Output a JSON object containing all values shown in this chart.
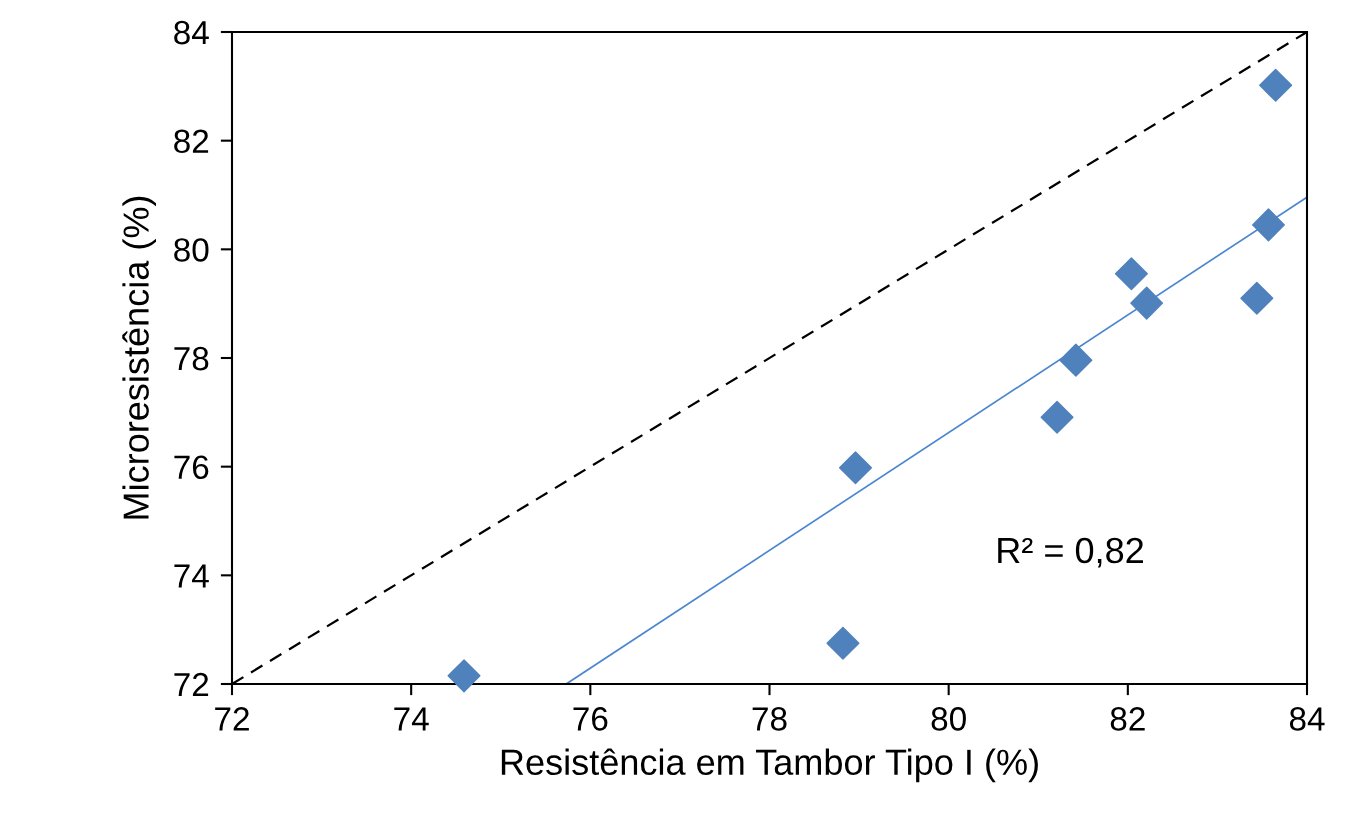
{
  "chart_data": {
    "type": "scatter",
    "xlabel": "Resistência em Tambor Tipo I (%)",
    "ylabel": "Microresistência (%)",
    "annotations": [
      "R² = 0,82"
    ],
    "series": [
      {
        "type": "line",
        "color": "#000000",
        "line_style": "dashed",
        "marker": "none",
        "x": [
          72,
          84
        ],
        "values": [
          72,
          84
        ]
      },
      {
        "type": "line",
        "color": "#4a86d0",
        "line_style": "solid",
        "marker": "none",
        "x": [
          75.73,
          84
        ],
        "values": [
          72,
          80.96
        ]
      },
      {
        "color": "#4f81bd",
        "marker": "diamond",
        "x": [
          74.59,
          78.82,
          78.96,
          81.21,
          81.42,
          82.04,
          82.21,
          83.44,
          83.57,
          83.65
        ],
        "values": [
          72.15,
          72.75,
          75.98,
          76.91,
          77.96,
          79.55,
          79.01,
          79.1,
          80.45,
          83.02
        ]
      }
    ],
    "xlim": [
      72,
      84
    ],
    "xticks": [
      72,
      74,
      76,
      78,
      80,
      82,
      84
    ],
    "ylim": [
      72,
      84
    ],
    "yticks": [
      72,
      74,
      76,
      78,
      80,
      82,
      84
    ],
    "grid": false,
    "legend": false
  }
}
